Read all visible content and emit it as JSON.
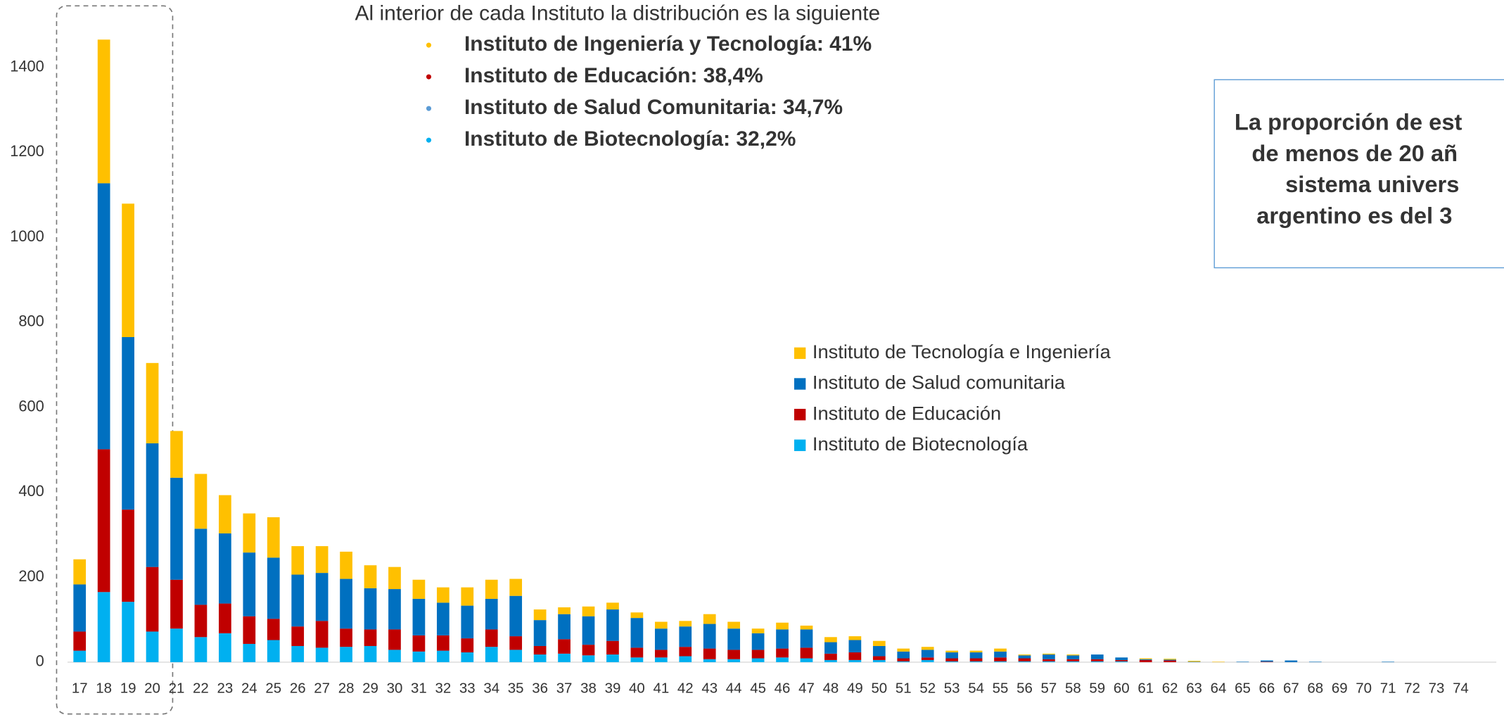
{
  "header": {
    "title": "Al interior de cada Instituto la distribución es la siguiente",
    "bullets": [
      {
        "text": "Instituto de Ingeniería y Tecnología: 41%",
        "color": "#FFC000"
      },
      {
        "text": "Instituto de Educación: 38,4%",
        "color": "#C00000"
      },
      {
        "text": "Instituto de Salud Comunitaria: 34,7%",
        "color": "#5B9BD5"
      },
      {
        "text": "Instituto de Biotecnología: 32,2%",
        "color": "#00B0F0"
      }
    ]
  },
  "callout": {
    "lines": [
      "La proporción de est",
      "de menos de 20 añ",
      "sistema univers",
      "argentino es del 3"
    ]
  },
  "chart_data": {
    "type": "stacked_bar",
    "categories": [
      "17",
      "18",
      "19",
      "20",
      "21",
      "22",
      "23",
      "24",
      "25",
      "26",
      "27",
      "28",
      "29",
      "30",
      "31",
      "32",
      "33",
      "34",
      "35",
      "36",
      "37",
      "38",
      "39",
      "40",
      "41",
      "42",
      "43",
      "44",
      "45",
      "46",
      "47",
      "48",
      "49",
      "50",
      "51",
      "52",
      "53",
      "54",
      "55",
      "56",
      "57",
      "58",
      "59",
      "60",
      "61",
      "62",
      "63",
      "64",
      "65",
      "66",
      "67",
      "68",
      "69",
      "70",
      "71",
      "72",
      "73",
      "74"
    ],
    "series": [
      {
        "name": "Instituto de Biotecnología",
        "color": "#00B0F0",
        "values": [
          27,
          165,
          142,
          72,
          79,
          59,
          68,
          43,
          52,
          38,
          34,
          36,
          38,
          29,
          25,
          27,
          23,
          36,
          29,
          18,
          20,
          16,
          18,
          11,
          11,
          14,
          7,
          7,
          9,
          11,
          9,
          5,
          5,
          5,
          2,
          5,
          2,
          2,
          2,
          2,
          2,
          2,
          2,
          2,
          0,
          0,
          0,
          0,
          0,
          0,
          0,
          0,
          0,
          0,
          0,
          0,
          0,
          0
        ]
      },
      {
        "name": "Instituto de Educación",
        "color": "#C00000",
        "values": [
          45,
          336,
          217,
          152,
          115,
          76,
          70,
          65,
          50,
          46,
          63,
          43,
          39,
          48,
          38,
          36,
          33,
          41,
          32,
          20,
          34,
          25,
          32,
          23,
          18,
          22,
          25,
          22,
          20,
          21,
          25,
          15,
          18,
          9,
          7,
          6,
          7,
          7,
          9,
          7,
          5,
          5,
          5,
          3,
          5,
          4,
          0,
          0,
          0,
          1,
          0,
          0,
          0,
          0,
          0,
          0,
          0,
          0
        ]
      },
      {
        "name": "Instituto de Salud comunitaria",
        "color": "#0070C0",
        "values": [
          111,
          626,
          406,
          291,
          240,
          179,
          165,
          150,
          144,
          122,
          113,
          117,
          97,
          95,
          86,
          77,
          77,
          72,
          95,
          61,
          59,
          67,
          74,
          70,
          50,
          48,
          58,
          50,
          39,
          45,
          43,
          27,
          29,
          24,
          16,
          18,
          14,
          14,
          14,
          7,
          11,
          9,
          11,
          6,
          2,
          2,
          1,
          0,
          1,
          3,
          4,
          1,
          0,
          0,
          1,
          0,
          0,
          0
        ]
      },
      {
        "name": "Instituto de Tecnología e Ingeniería",
        "color": "#FFC000",
        "values": [
          59,
          338,
          314,
          189,
          110,
          129,
          90,
          92,
          95,
          67,
          63,
          64,
          54,
          52,
          45,
          36,
          43,
          45,
          40,
          25,
          16,
          23,
          16,
          13,
          16,
          13,
          23,
          16,
          11,
          16,
          9,
          12,
          9,
          12,
          7,
          7,
          4,
          4,
          7,
          2,
          2,
          2,
          0,
          0,
          2,
          2,
          2,
          1,
          0,
          0,
          0,
          0,
          0,
          0,
          0,
          0,
          0,
          0
        ]
      }
    ],
    "ylim": [
      0,
      1550
    ],
    "yticks": [
      0,
      200,
      400,
      600,
      800,
      1000,
      1200,
      1400
    ],
    "legend": "center-right",
    "grid": false
  }
}
